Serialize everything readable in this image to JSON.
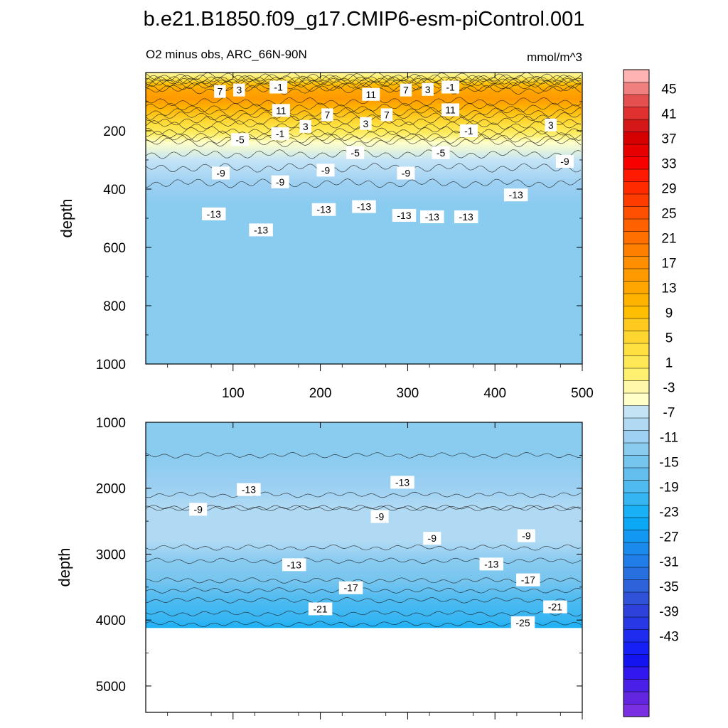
{
  "figure": {
    "title": "b.e21.B1850.f09_g17.CMIP6-esm-piControl.001",
    "subtitle_left": "O2 minus obs, ARC_66N-90N",
    "subtitle_right": "mmol/m^3"
  },
  "chart_data": [
    {
      "type": "heatmap",
      "panel": "upper",
      "ylabel": "depth",
      "xlabel": "",
      "xlim": [
        0,
        500
      ],
      "ylim": [
        0,
        1000
      ],
      "y_inverted": true,
      "x_ticks": [
        100,
        200,
        300,
        400,
        500
      ],
      "y_ticks": [
        200,
        400,
        600,
        800,
        1000
      ],
      "depth_profile": [
        {
          "depth": 0,
          "value": -3
        },
        {
          "depth": 15,
          "value": -1
        },
        {
          "depth": 25,
          "value": 3
        },
        {
          "depth": 40,
          "value": 9
        },
        {
          "depth": 60,
          "value": 13
        },
        {
          "depth": 90,
          "value": 14
        },
        {
          "depth": 120,
          "value": 11
        },
        {
          "depth": 150,
          "value": 7
        },
        {
          "depth": 180,
          "value": 3
        },
        {
          "depth": 200,
          "value": 1
        },
        {
          "depth": 215,
          "value": -1
        },
        {
          "depth": 240,
          "value": -5
        },
        {
          "depth": 300,
          "value": -8
        },
        {
          "depth": 380,
          "value": -11
        },
        {
          "depth": 450,
          "value": -13
        },
        {
          "depth": 600,
          "value": -13
        },
        {
          "depth": 1000,
          "value": -13
        }
      ],
      "contour_labels": [
        {
          "x": 85,
          "depth": 65,
          "text": "7"
        },
        {
          "x": 107,
          "depth": 60,
          "text": "3"
        },
        {
          "x": 152,
          "depth": 50,
          "text": "-1"
        },
        {
          "x": 155,
          "depth": 130,
          "text": "11"
        },
        {
          "x": 208,
          "depth": 145,
          "text": "7"
        },
        {
          "x": 258,
          "depth": 75,
          "text": "11"
        },
        {
          "x": 298,
          "depth": 60,
          "text": "7"
        },
        {
          "x": 323,
          "depth": 58,
          "text": "3"
        },
        {
          "x": 349,
          "depth": 50,
          "text": "-1"
        },
        {
          "x": 349,
          "depth": 128,
          "text": "11"
        },
        {
          "x": 276,
          "depth": 145,
          "text": "7"
        },
        {
          "x": 252,
          "depth": 175,
          "text": "3"
        },
        {
          "x": 183,
          "depth": 185,
          "text": "3"
        },
        {
          "x": 154,
          "depth": 210,
          "text": "-1"
        },
        {
          "x": 108,
          "depth": 230,
          "text": "-5"
        },
        {
          "x": 370,
          "depth": 200,
          "text": "-1"
        },
        {
          "x": 464,
          "depth": 180,
          "text": "3"
        },
        {
          "x": 240,
          "depth": 275,
          "text": "-5"
        },
        {
          "x": 338,
          "depth": 275,
          "text": "-5"
        },
        {
          "x": 86,
          "depth": 345,
          "text": "-9"
        },
        {
          "x": 154,
          "depth": 375,
          "text": "-9"
        },
        {
          "x": 206,
          "depth": 335,
          "text": "-9"
        },
        {
          "x": 298,
          "depth": 345,
          "text": "-9"
        },
        {
          "x": 480,
          "depth": 305,
          "text": "-9"
        },
        {
          "x": 78,
          "depth": 485,
          "text": "-13"
        },
        {
          "x": 132,
          "depth": 540,
          "text": "-13"
        },
        {
          "x": 204,
          "depth": 470,
          "text": "-13"
        },
        {
          "x": 250,
          "depth": 460,
          "text": "-13"
        },
        {
          "x": 296,
          "depth": 490,
          "text": "-13"
        },
        {
          "x": 328,
          "depth": 495,
          "text": "-13"
        },
        {
          "x": 367,
          "depth": 495,
          "text": "-13"
        },
        {
          "x": 424,
          "depth": 420,
          "text": "-13"
        }
      ]
    },
    {
      "type": "heatmap",
      "panel": "lower",
      "ylabel": "depth",
      "xlabel": "",
      "xlim": [
        0,
        500
      ],
      "ylim": [
        1000,
        5400
      ],
      "y_inverted": true,
      "x_ticks": [
        100,
        200,
        300,
        400,
        500
      ],
      "y_ticks": [
        1000,
        2000,
        3000,
        4000,
        5000
      ],
      "data_bottom_depth": 4120,
      "depth_profile": [
        {
          "depth": 1000,
          "value": -14
        },
        {
          "depth": 1500,
          "value": -13
        },
        {
          "depth": 2000,
          "value": -12
        },
        {
          "depth": 2300,
          "value": -9
        },
        {
          "depth": 2800,
          "value": -10
        },
        {
          "depth": 3100,
          "value": -13
        },
        {
          "depth": 3400,
          "value": -15
        },
        {
          "depth": 3700,
          "value": -19
        },
        {
          "depth": 4000,
          "value": -22
        },
        {
          "depth": 4120,
          "value": -24
        }
      ],
      "contour_labels": [
        {
          "x": 118,
          "depth": 2020,
          "text": "-13"
        },
        {
          "x": 294,
          "depth": 1910,
          "text": "-13"
        },
        {
          "x": 60,
          "depth": 2320,
          "text": "-9"
        },
        {
          "x": 268,
          "depth": 2430,
          "text": "-9"
        },
        {
          "x": 328,
          "depth": 2760,
          "text": "-9"
        },
        {
          "x": 436,
          "depth": 2720,
          "text": "-9"
        },
        {
          "x": 170,
          "depth": 3160,
          "text": "-13"
        },
        {
          "x": 396,
          "depth": 3150,
          "text": "-13"
        },
        {
          "x": 235,
          "depth": 3510,
          "text": "-17"
        },
        {
          "x": 438,
          "depth": 3390,
          "text": "-17"
        },
        {
          "x": 200,
          "depth": 3830,
          "text": "-21"
        },
        {
          "x": 469,
          "depth": 3800,
          "text": "-21"
        },
        {
          "x": 432,
          "depth": 4040,
          "text": "-25"
        }
      ]
    },
    {
      "type": "colorbar",
      "levels_min": -45,
      "levels_max": 47,
      "level_step": 2,
      "tick_labels": [
        "45",
        "41",
        "37",
        "33",
        "29",
        "25",
        "21",
        "17",
        "13",
        "9",
        "5",
        "1",
        "-3",
        "-7",
        "-11",
        "-15",
        "-19",
        "-23",
        "-27",
        "-31",
        "-35",
        "-39",
        "-43"
      ],
      "colors_top_to_bottom": [
        "#FFB3B3",
        "#F08080",
        "#E45050",
        "#E03030",
        "#D41818",
        "#D70000",
        "#E60000",
        "#F80000",
        "#FF1A00",
        "#FF2A00",
        "#FF3C00",
        "#FF4F00",
        "#FF6000",
        "#FF7000",
        "#FF8000",
        "#FF8F00",
        "#FF9A00",
        "#FFA600",
        "#FFB200",
        "#FFBE00",
        "#FFCA20",
        "#FFD530",
        "#FFE040",
        "#FFE855",
        "#FFF070",
        "#FFF8A8",
        "#FFFFC8",
        "#C4E4F6",
        "#B0DAF4",
        "#9DD0F2",
        "#8ACBF0",
        "#76C5EF",
        "#62BFEE",
        "#4EBAF0",
        "#35B5F2",
        "#1AB0F5",
        "#0AA8F5",
        "#1298F0",
        "#1A8AEC",
        "#217DE8",
        "#2870E0",
        "#2D62DA",
        "#2F52D8",
        "#2C42DA",
        "#2838E4",
        "#1F2CF0",
        "#1420F5",
        "#1414F0",
        "#3018EE",
        "#4A20E8",
        "#6226E0",
        "#7A30E2"
      ]
    }
  ]
}
